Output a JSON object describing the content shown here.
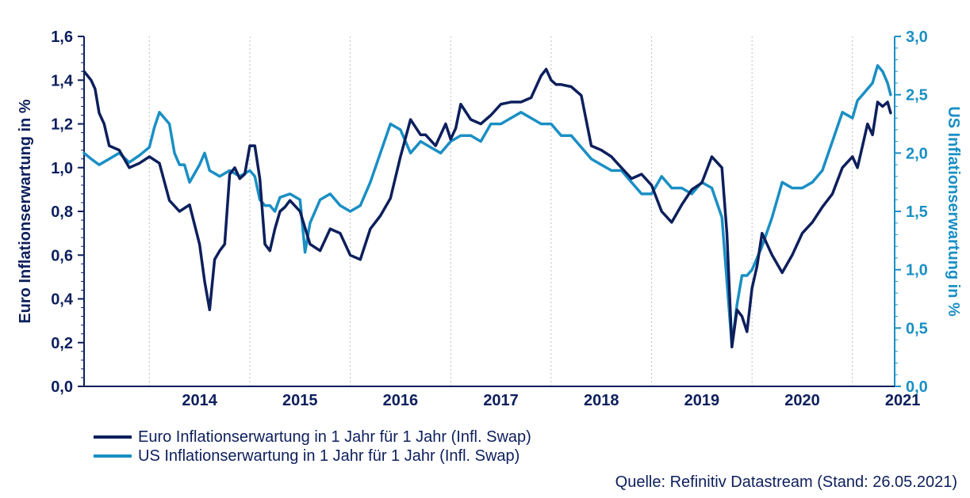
{
  "chart_data": {
    "type": "line",
    "y_left_label": "Euro Inflationserwartung in %",
    "y_right_label": "US Inflationserwartung in %",
    "y_left_lim": [
      0.0,
      1.6
    ],
    "y_right_lim": [
      0.0,
      3.0
    ],
    "y_left_ticks": [
      "0,0",
      "0,2",
      "0,4",
      "0,6",
      "0,8",
      "1,0",
      "1,2",
      "1,4",
      "1,6"
    ],
    "y_right_ticks": [
      "0,0",
      "0,5",
      "1,0",
      "1,5",
      "2,0",
      "2,5",
      "3,0"
    ],
    "x_lim": [
      2013.35,
      2021.42
    ],
    "x_ticks": [
      "2014",
      "2015",
      "2016",
      "2017",
      "2018",
      "2019",
      "2020",
      "2021"
    ],
    "grid": "vertical dotted at year boundaries",
    "colors": {
      "euro": "#0d1f5c",
      "us": "#1a8fc4",
      "axis": "#0d1f5c",
      "us_axis": "#1a8fc4",
      "grid": "#bfbfbf"
    },
    "series": [
      {
        "name": "Euro Inflationserwartung in 1 Jahr für 1 Jahr (Infl. Swap)",
        "axis": "left",
        "x": [
          2013.35,
          2013.42,
          2013.46,
          2013.5,
          2013.55,
          2013.6,
          2013.7,
          2013.8,
          2013.9,
          2014.0,
          2014.1,
          2014.2,
          2014.3,
          2014.4,
          2014.5,
          2014.55,
          2014.6,
          2014.65,
          2014.7,
          2014.75,
          2014.8,
          2014.85,
          2014.9,
          2014.95,
          2015.0,
          2015.05,
          2015.1,
          2015.15,
          2015.2,
          2015.25,
          2015.3,
          2015.35,
          2015.4,
          2015.5,
          2015.6,
          2015.7,
          2015.8,
          2015.9,
          2016.0,
          2016.1,
          2016.2,
          2016.3,
          2016.4,
          2016.5,
          2016.6,
          2016.7,
          2016.75,
          2016.85,
          2016.95,
          2017.0,
          2017.05,
          2017.1,
          2017.2,
          2017.3,
          2017.4,
          2017.5,
          2017.6,
          2017.7,
          2017.8,
          2017.9,
          2017.95,
          2018.0,
          2018.05,
          2018.1,
          2018.2,
          2018.3,
          2018.4,
          2018.5,
          2018.6,
          2018.7,
          2018.8,
          2018.9,
          2019.0,
          2019.1,
          2019.2,
          2019.3,
          2019.4,
          2019.5,
          2019.6,
          2019.7,
          2019.75,
          2019.8,
          2019.85,
          2019.9,
          2019.95,
          2020.0,
          2020.05,
          2020.1,
          2020.2,
          2020.3,
          2020.4,
          2020.5,
          2020.6,
          2020.7,
          2020.8,
          2020.9,
          2021.0,
          2021.05,
          2021.1,
          2021.15,
          2021.2,
          2021.25,
          2021.3,
          2021.35,
          2021.38
        ],
        "y": [
          1.44,
          1.4,
          1.36,
          1.25,
          1.2,
          1.1,
          1.08,
          1.0,
          1.02,
          1.05,
          1.02,
          0.85,
          0.8,
          0.83,
          0.65,
          0.48,
          0.35,
          0.58,
          0.62,
          0.65,
          0.97,
          1.0,
          0.95,
          0.97,
          1.1,
          1.1,
          0.95,
          0.65,
          0.62,
          0.72,
          0.8,
          0.82,
          0.85,
          0.8,
          0.65,
          0.62,
          0.72,
          0.7,
          0.6,
          0.58,
          0.72,
          0.78,
          0.86,
          1.05,
          1.22,
          1.15,
          1.15,
          1.1,
          1.2,
          1.13,
          1.18,
          1.29,
          1.22,
          1.2,
          1.24,
          1.29,
          1.3,
          1.3,
          1.32,
          1.42,
          1.45,
          1.4,
          1.38,
          1.38,
          1.37,
          1.33,
          1.1,
          1.08,
          1.05,
          1.0,
          0.95,
          0.97,
          0.92,
          0.8,
          0.75,
          0.83,
          0.9,
          0.93,
          1.05,
          1.0,
          0.7,
          0.18,
          0.35,
          0.32,
          0.25,
          0.45,
          0.55,
          0.7,
          0.6,
          0.52,
          0.6,
          0.7,
          0.75,
          0.82,
          0.88,
          1.0,
          1.05,
          1.0,
          1.1,
          1.2,
          1.15,
          1.3,
          1.28,
          1.3,
          1.25
        ]
      },
      {
        "name": "US Inflationserwartung in 1 Jahr für 1 Jahr (Infl. Swap)",
        "axis": "right",
        "x": [
          2013.35,
          2013.42,
          2013.5,
          2013.6,
          2013.7,
          2013.8,
          2013.9,
          2014.0,
          2014.05,
          2014.1,
          2014.15,
          2014.2,
          2014.25,
          2014.3,
          2014.35,
          2014.4,
          2014.5,
          2014.55,
          2014.6,
          2014.7,
          2014.8,
          2014.9,
          2015.0,
          2015.05,
          2015.1,
          2015.15,
          2015.2,
          2015.25,
          2015.3,
          2015.4,
          2015.5,
          2015.55,
          2015.6,
          2015.7,
          2015.8,
          2015.9,
          2016.0,
          2016.1,
          2016.2,
          2016.3,
          2016.4,
          2016.5,
          2016.6,
          2016.7,
          2016.8,
          2016.9,
          2017.0,
          2017.1,
          2017.2,
          2017.3,
          2017.4,
          2017.5,
          2017.6,
          2017.7,
          2017.8,
          2017.9,
          2018.0,
          2018.1,
          2018.2,
          2018.3,
          2018.4,
          2018.5,
          2018.6,
          2018.7,
          2018.8,
          2018.9,
          2019.0,
          2019.1,
          2019.2,
          2019.3,
          2019.4,
          2019.5,
          2019.6,
          2019.7,
          2019.75,
          2019.8,
          2019.85,
          2019.9,
          2019.95,
          2020.0,
          2020.1,
          2020.2,
          2020.3,
          2020.4,
          2020.5,
          2020.6,
          2020.7,
          2020.8,
          2020.9,
          2021.0,
          2021.05,
          2021.1,
          2021.15,
          2021.2,
          2021.25,
          2021.3,
          2021.35,
          2021.38
        ],
        "y": [
          2.0,
          1.95,
          1.9,
          1.95,
          2.0,
          1.92,
          1.98,
          2.05,
          2.22,
          2.35,
          2.3,
          2.25,
          2.0,
          1.9,
          1.9,
          1.75,
          1.9,
          2.0,
          1.85,
          1.8,
          1.85,
          1.8,
          1.85,
          1.8,
          1.6,
          1.55,
          1.55,
          1.5,
          1.62,
          1.65,
          1.6,
          1.15,
          1.4,
          1.6,
          1.65,
          1.55,
          1.5,
          1.55,
          1.75,
          2.0,
          2.25,
          2.2,
          2.0,
          2.1,
          2.05,
          2.0,
          2.1,
          2.15,
          2.15,
          2.1,
          2.25,
          2.25,
          2.3,
          2.35,
          2.3,
          2.25,
          2.25,
          2.15,
          2.15,
          2.05,
          1.95,
          1.9,
          1.85,
          1.85,
          1.75,
          1.65,
          1.65,
          1.8,
          1.7,
          1.7,
          1.65,
          1.75,
          1.7,
          1.45,
          0.9,
          0.35,
          0.7,
          0.95,
          0.95,
          1.0,
          1.2,
          1.45,
          1.75,
          1.7,
          1.7,
          1.75,
          1.85,
          2.1,
          2.35,
          2.3,
          2.45,
          2.5,
          2.55,
          2.6,
          2.75,
          2.7,
          2.6,
          2.5
        ]
      }
    ]
  },
  "legend": {
    "items": [
      {
        "label": "Euro Inflationserwartung in 1 Jahr für 1 Jahr (Infl. Swap)",
        "color": "#0d1f5c"
      },
      {
        "label": "US Inflationserwartung in 1 Jahr für 1 Jahr (Infl. Swap)",
        "color": "#1a8fc4"
      }
    ]
  },
  "source": "Quelle: Refinitiv Datastream (Stand: 26.05.2021)"
}
